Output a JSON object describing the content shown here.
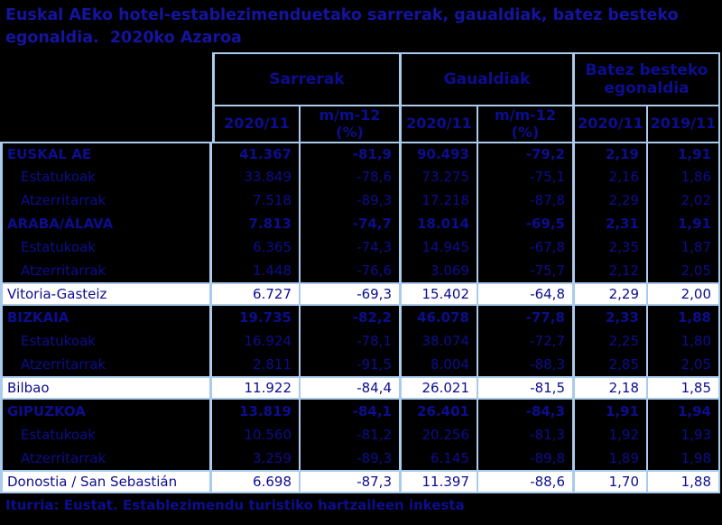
{
  "title_line1": "Euskal AEko hotel-establezimenduetako sarrerak, gaualdiak, batez besteko",
  "title_line2": "egonaldia.  2020ko Azaroa",
  "table": {
    "groups": [
      {
        "label": "Sarrerak"
      },
      {
        "label": "Gaualdiak"
      },
      {
        "label": "Batez besteko egonaldia"
      }
    ],
    "subheaders": [
      {
        "l1": "2020/11",
        "l2": ""
      },
      {
        "l1": "m/m-12",
        "l2": "(%)"
      },
      {
        "l1": "2020/11",
        "l2": ""
      },
      {
        "l1": "m/m-12",
        "l2": "(%)"
      },
      {
        "l1": "2020/11",
        "l2": ""
      },
      {
        "l1": "2019/11",
        "l2": ""
      }
    ],
    "rows": [
      {
        "label": "EUSKAL AE",
        "style": "region",
        "values": [
          "41.367",
          "-81,9",
          "90.493",
          "-79,2",
          "2,19",
          "1,91"
        ]
      },
      {
        "label": "Estatukoak",
        "style": "sub",
        "values": [
          "33.849",
          "-78,6",
          "73.275",
          "-75,1",
          "2,16",
          "1,86"
        ]
      },
      {
        "label": "Atzerritarrak",
        "style": "sub",
        "values": [
          "7.518",
          "-89,3",
          "17.218",
          "-87,8",
          "2,29",
          "2,02"
        ]
      },
      {
        "label": "ARABA/ÁLAVA",
        "style": "region",
        "values": [
          "7.813",
          "-74,7",
          "18.014",
          "-69,5",
          "2,31",
          "1,91"
        ]
      },
      {
        "label": "Estatukoak",
        "style": "sub",
        "values": [
          "6.365",
          "-74,3",
          "14.945",
          "-67,8",
          "2,35",
          "1,87"
        ]
      },
      {
        "label": "Atzerritarrak",
        "style": "sub",
        "values": [
          "1.448",
          "-76,6",
          "3.069",
          "-75,7",
          "2,12",
          "2,05"
        ]
      },
      {
        "label": "Vitoria-Gasteiz",
        "style": "city",
        "values": [
          "6.727",
          "-69,3",
          "15.402",
          "-64,8",
          "2,29",
          "2,00"
        ]
      },
      {
        "label": "BIZKAIA",
        "style": "region",
        "values": [
          "19.735",
          "-82,2",
          "46.078",
          "-77,8",
          "2,33",
          "1,88"
        ]
      },
      {
        "label": "Estatukoak",
        "style": "sub",
        "values": [
          "16.924",
          "-78,1",
          "38.074",
          "-72,7",
          "2,25",
          "1,80"
        ]
      },
      {
        "label": "Atzerritarrak",
        "style": "sub",
        "values": [
          "2.811",
          "-91,5",
          "8.004",
          "-88,3",
          "2,85",
          "2,05"
        ]
      },
      {
        "label": "Bilbao",
        "style": "city",
        "values": [
          "11.922",
          "-84,4",
          "26.021",
          "-81,5",
          "2,18",
          "1,85"
        ]
      },
      {
        "label": "GIPUZKOA",
        "style": "region",
        "values": [
          "13.819",
          "-84,1",
          "26.401",
          "-84,3",
          "1,91",
          "1,94"
        ]
      },
      {
        "label": "Estatukoak",
        "style": "sub",
        "values": [
          "10.560",
          "-81,2",
          "20.256",
          "-81,3",
          "1,92",
          "1,93"
        ]
      },
      {
        "label": "Atzerritarrak",
        "style": "sub",
        "values": [
          "3.259",
          "-89,3",
          "6.145",
          "-89,8",
          "1,89",
          "1,98"
        ]
      },
      {
        "label": "Donostia / San Sebastián",
        "style": "city",
        "values": [
          "6.698",
          "-87,3",
          "11.397",
          "-88,6",
          "1,70",
          "1,88"
        ]
      }
    ]
  },
  "footer": "Iturria: Eustat. Establezimendu turistiko hartzaileen inkesta",
  "colors": {
    "background": "#000000",
    "border_light_blue": "#A9CBEC",
    "text_navy": "#0D0D8F",
    "highlight_row_bg": "#FFFFFF",
    "title_navy": "#1414A0"
  }
}
